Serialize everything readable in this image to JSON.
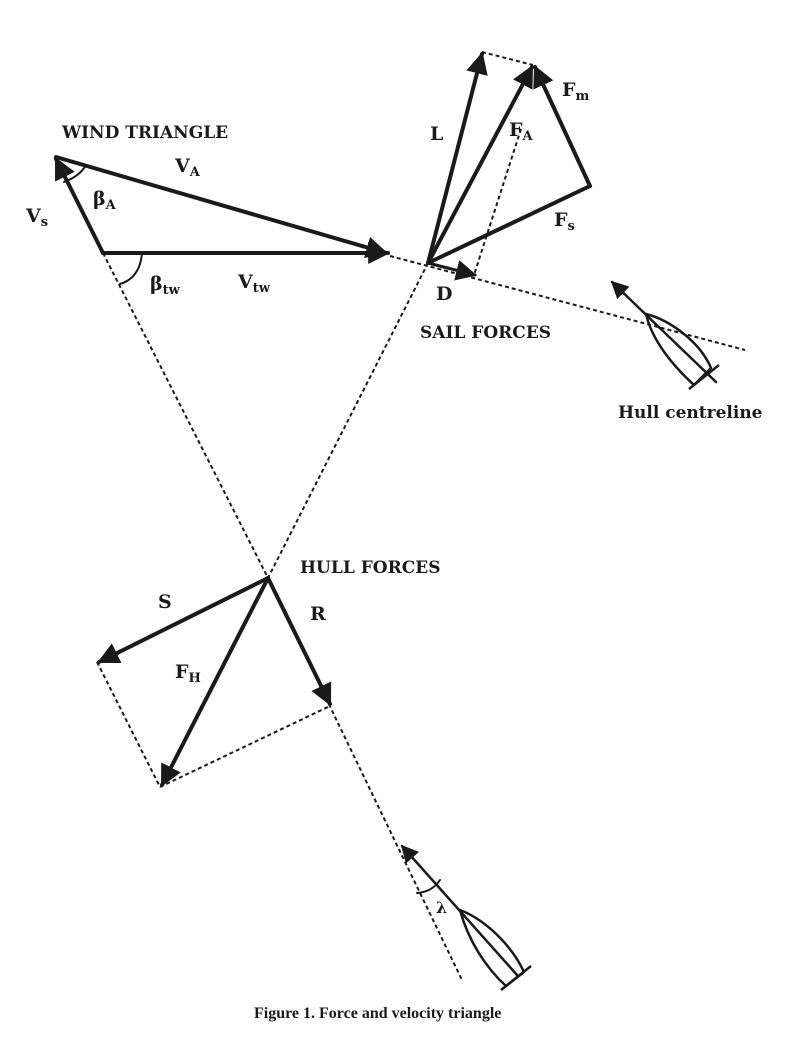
{
  "title": "Figure 1. Force and velocity triangle",
  "sections": {
    "wind_triangle": "WIND TRIANGLE",
    "sail_forces": "SAIL FORCES",
    "hull_forces": "HULL FORCES"
  },
  "annotations": {
    "hull_centreline": "Hull centreline"
  },
  "symbols": {
    "vs": {
      "main": "V",
      "sub": "s"
    },
    "va": {
      "main": "V",
      "sub": "A"
    },
    "vtw": {
      "main": "V",
      "sub": "tw"
    },
    "beta_a": {
      "main": "β",
      "sub": "A"
    },
    "beta_tw": {
      "main": "β",
      "sub": "tw"
    },
    "lift": "L",
    "fa": {
      "main": "F",
      "sub": "A"
    },
    "fm": {
      "main": "F",
      "sub": "m"
    },
    "fs": {
      "main": "F",
      "sub": "s"
    },
    "drag": "D",
    "side": "S",
    "resist": "R",
    "fh": {
      "main": "F",
      "sub": "H"
    },
    "leeway": "λ"
  },
  "colors": {
    "ink": "#1a1a1a",
    "paper": "#ffffff"
  }
}
